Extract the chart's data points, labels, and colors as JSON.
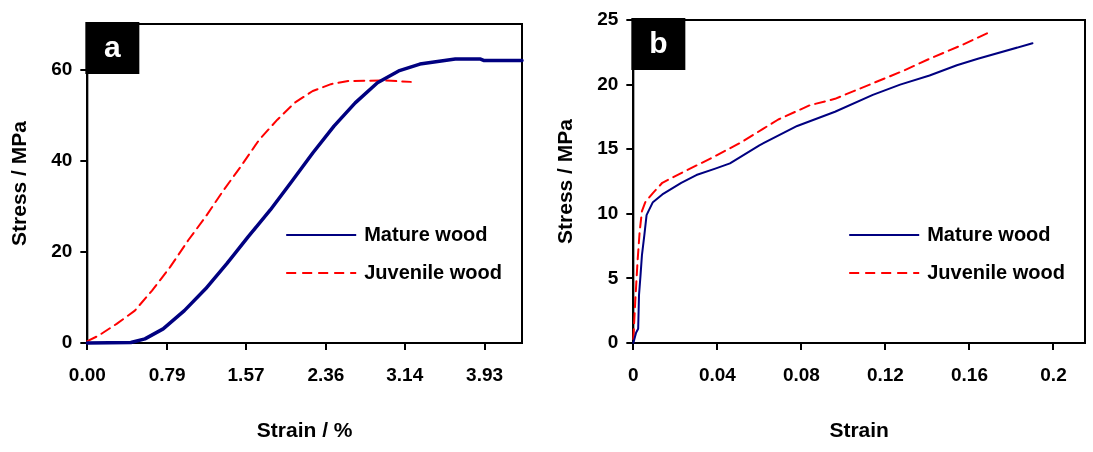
{
  "chart_data": [
    {
      "type": "line",
      "xlabel": "Strain / %",
      "ylabel": "Stress / MPa",
      "annotations": [
        "a"
      ],
      "xlim": [
        0,
        4.3
      ],
      "xticks": [
        {
          "value": 0,
          "label": "0.00"
        },
        0.79,
        1.57,
        2.36,
        3.14,
        3.93
      ],
      "ylim": [
        0,
        70
      ],
      "yticks": [
        0,
        20,
        40,
        60
      ],
      "grid": false,
      "legend": "bottom right",
      "marker": "none",
      "series": [
        {
          "name": "Mature wood",
          "color": "#000080",
          "line_style": "solid",
          "x": [
            0,
            0.43,
            0.57,
            0.75,
            0.96,
            1.17,
            1.38,
            1.59,
            1.81,
            2.02,
            2.23,
            2.44,
            2.65,
            2.87,
            3.08,
            3.29,
            3.5,
            3.64,
            3.89,
            3.92,
            4.3
          ],
          "values": [
            0,
            0.1,
            0.9,
            3.1,
            7.1,
            11.9,
            17.4,
            23.3,
            29.2,
            35.4,
            41.7,
            47.6,
            52.7,
            57.1,
            59.7,
            61.2,
            61.9,
            62.3,
            62.3,
            62.0,
            62.0
          ]
        },
        {
          "name": "Juvenile wood",
          "color": "#ff0000",
          "line_style": "dashed",
          "x": [
            0,
            0.11,
            0.29,
            0.47,
            0.64,
            0.82,
            1.0,
            1.17,
            1.35,
            1.52,
            1.7,
            1.88,
            2.05,
            2.23,
            2.41,
            2.58,
            2.94,
            3.2
          ],
          "values": [
            0.4,
            1.6,
            4.2,
            7.1,
            11.5,
            16.7,
            22.6,
            27.7,
            33.6,
            38.8,
            44.6,
            49.0,
            52.7,
            55.3,
            56.8,
            57.5,
            57.6,
            57.3
          ]
        }
      ]
    },
    {
      "type": "line",
      "xlabel": "Strain",
      "ylabel": "Stress / MPa",
      "annotations": [
        "b"
      ],
      "xlim": [
        0,
        0.215
      ],
      "xticks": [
        0,
        0.04,
        0.08,
        0.12,
        0.16,
        0.2
      ],
      "ylim": [
        0,
        25
      ],
      "yticks": [
        0,
        5,
        10,
        15,
        20,
        25
      ],
      "grid": false,
      "legend": "bottom right",
      "marker": "none",
      "series": [
        {
          "name": "Mature wood",
          "color": "#000080",
          "line_style": "solid",
          "x": [
            0,
            0.0013,
            0.0023,
            0.0027,
            0.0034,
            0.0041,
            0.0052,
            0.0063,
            0.0075,
            0.0093,
            0.0138,
            0.0228,
            0.03,
            0.039,
            0.046,
            0.06,
            0.078,
            0.096,
            0.114,
            0.127,
            0.141,
            0.154,
            0.164,
            0.19
          ],
          "values": [
            0,
            0.8,
            1.1,
            3.7,
            5.2,
            6.8,
            8.3,
            9.9,
            10.3,
            10.9,
            11.5,
            12.4,
            13.0,
            13.5,
            13.9,
            15.3,
            16.8,
            17.9,
            19.2,
            20.0,
            20.7,
            21.5,
            22.0,
            23.2
          ]
        },
        {
          "name": "Juvenile wood",
          "color": "#ff0000",
          "line_style": "dashed",
          "x": [
            0,
            0.0009,
            0.002,
            0.003,
            0.0041,
            0.0057,
            0.0093,
            0.0138,
            0.0246,
            0.037,
            0.051,
            0.069,
            0.084,
            0.096,
            0.114,
            0.129,
            0.141,
            0.157,
            0.17
          ],
          "values": [
            0.3,
            3.2,
            6.3,
            8.6,
            10.2,
            10.9,
            11.6,
            12.4,
            13.3,
            14.3,
            15.5,
            17.3,
            18.4,
            18.9,
            20.1,
            21.1,
            22.0,
            23.1,
            24.1
          ]
        }
      ]
    }
  ]
}
